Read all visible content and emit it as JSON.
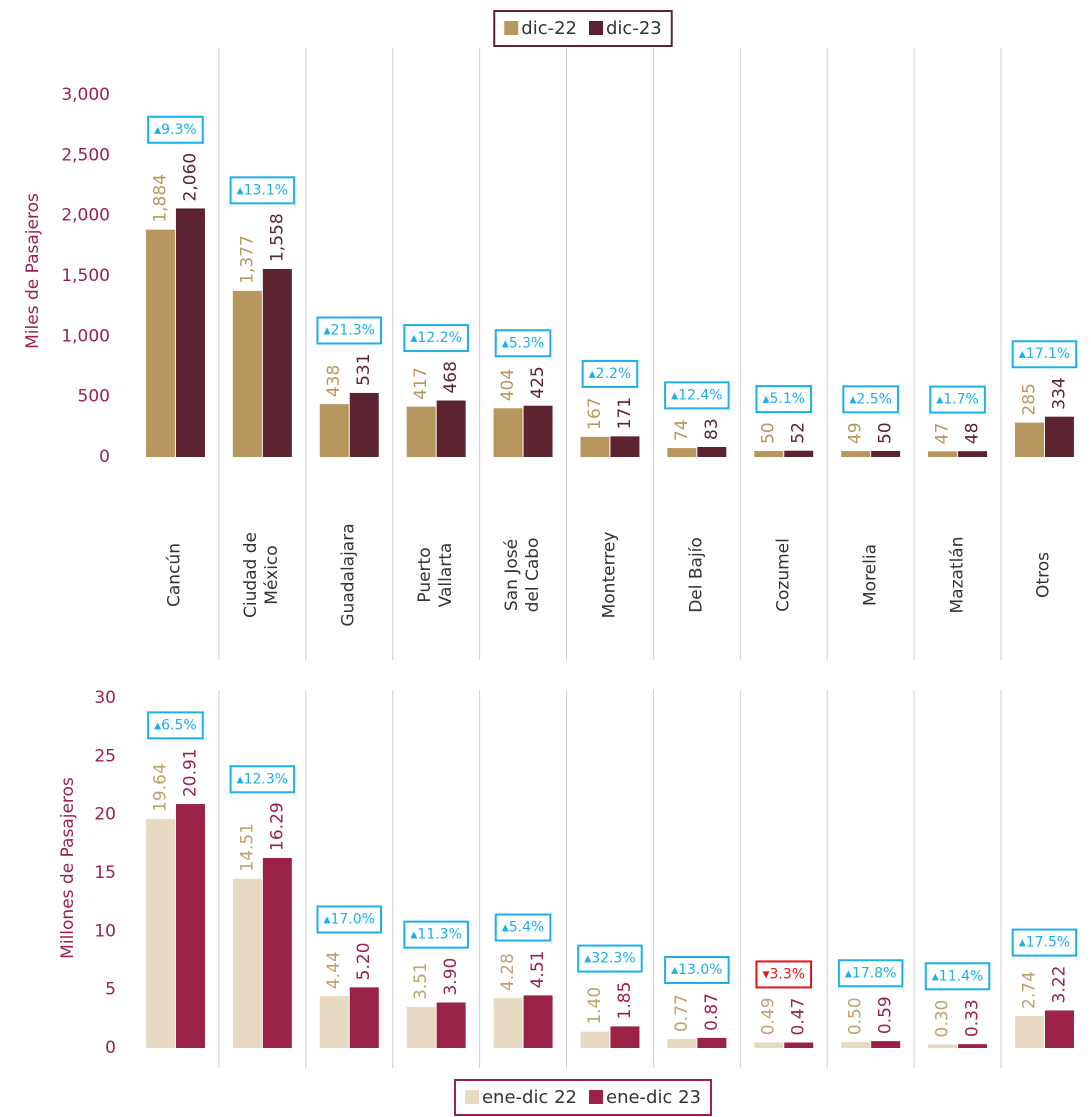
{
  "chart_data": [
    {
      "type": "bar",
      "y_label": "Miles de Pasajeros",
      "categories": [
        "Cancún",
        "Ciudad de\nMéxico",
        "Guadalajara",
        "Puerto\nVallarta",
        "San José\ndel Cabo",
        "Monterrey",
        "Del Bajío",
        "Cozumel",
        "Morelia",
        "Mazatlán",
        "Otros"
      ],
      "series": [
        {
          "name": "dic-22",
          "color": "#b8975e",
          "label_color": "#b59a60",
          "values": [
            1884,
            1377,
            438,
            417,
            404,
            167,
            74,
            50,
            49,
            47,
            285
          ],
          "value_labels": [
            "1,884",
            "1,377",
            "438",
            "417",
            "404",
            "167",
            "74",
            "50",
            "49",
            "47",
            "285"
          ]
        },
        {
          "name": "dic-23",
          "color": "#5c2430",
          "label_color": "#5c2430",
          "values": [
            2060,
            1558,
            531,
            468,
            425,
            171,
            83,
            52,
            50,
            48,
            334
          ],
          "value_labels": [
            "2,060",
            "1,558",
            "531",
            "468",
            "425",
            "171",
            "83",
            "52",
            "50",
            "48",
            "334"
          ]
        }
      ],
      "annotations": [
        {
          "text": "▴9.3%",
          "color": "#1ab0e8"
        },
        {
          "text": "▴13.1%",
          "color": "#1ab0e8"
        },
        {
          "text": "▴21.3%",
          "color": "#1ab0e8"
        },
        {
          "text": "▴12.2%",
          "color": "#1ab0e8"
        },
        {
          "text": "▴5.3%",
          "color": "#1ab0e8"
        },
        {
          "text": "▴2.2%",
          "color": "#1ab0e8"
        },
        {
          "text": "▴12.4%",
          "color": "#1ab0e8"
        },
        {
          "text": "▴5.1%",
          "color": "#1ab0e8"
        },
        {
          "text": "▴2.5%",
          "color": "#1ab0e8"
        },
        {
          "text": "▴1.7%",
          "color": "#1ab0e8"
        },
        {
          "text": "▴17.1%",
          "color": "#1ab0e8"
        }
      ],
      "ylim": [
        0,
        3000
      ],
      "yticks": [
        0,
        500,
        {
          "value": 1000,
          "label": "1,000"
        },
        {
          "value": 1500,
          "label": "1,500"
        },
        {
          "value": 2000,
          "label": "2,000"
        },
        {
          "value": 2500,
          "label": "2,500"
        },
        {
          "value": 3000,
          "label": "3,000"
        }
      ],
      "legend": "top"
    },
    {
      "type": "bar",
      "y_label": "Millones de Pasajeros",
      "series": [
        {
          "name": "ene-dic 22",
          "color": "#e6dac2",
          "label_color": "#bca36f",
          "values": [
            19.64,
            14.51,
            4.44,
            3.51,
            4.28,
            1.4,
            0.77,
            0.49,
            0.5,
            0.3,
            2.74
          ],
          "value_labels": [
            "19.64",
            "14.51",
            "4.44",
            "3.51",
            "4.28",
            "1.40",
            "0.77",
            "0.49",
            "0.50",
            "0.30",
            "2.74"
          ]
        },
        {
          "name": "ene-dic 23",
          "color": "#9b2247",
          "label_color": "#9b2247",
          "values": [
            20.91,
            16.29,
            5.2,
            3.9,
            4.51,
            1.85,
            0.87,
            0.47,
            0.59,
            0.33,
            3.22
          ],
          "value_labels": [
            "20.91",
            "16.29",
            "5.20",
            "3.90",
            "4.51",
            "1.85",
            "0.87",
            "0.47",
            "0.59",
            "0.33",
            "3.22"
          ]
        }
      ],
      "annotations": [
        {
          "text": "▴6.5%",
          "color": "#1ab0e8"
        },
        {
          "text": "▴12.3%",
          "color": "#1ab0e8"
        },
        {
          "text": "▴17.0%",
          "color": "#1ab0e8"
        },
        {
          "text": "▴11.3%",
          "color": "#1ab0e8"
        },
        {
          "text": "▴5.4%",
          "color": "#1ab0e8"
        },
        {
          "text": "▴32.3%",
          "color": "#1ab0e8"
        },
        {
          "text": "▴13.0%",
          "color": "#1ab0e8"
        },
        {
          "text": "▾3.3%",
          "color": "#e3141b"
        },
        {
          "text": "▴17.8%",
          "color": "#1ab0e8"
        },
        {
          "text": "▴11.4%",
          "color": "#1ab0e8"
        },
        {
          "text": "▴17.5%",
          "color": "#1ab0e8"
        }
      ],
      "ylim": [
        0,
        30
      ],
      "yticks": [
        0,
        5,
        10,
        15,
        20,
        25,
        30
      ],
      "legend": "bottom"
    }
  ]
}
